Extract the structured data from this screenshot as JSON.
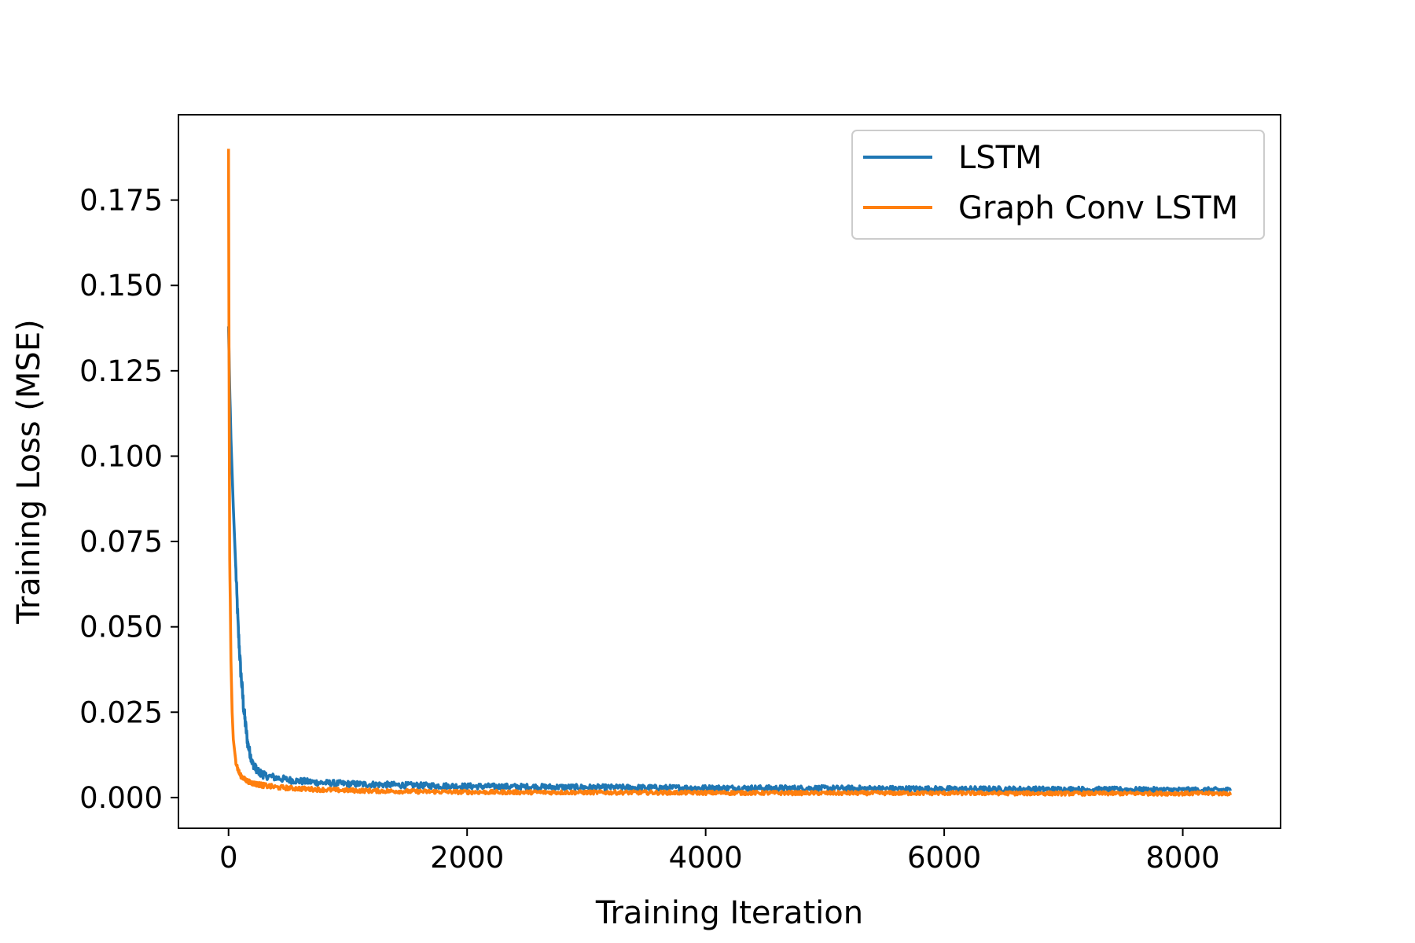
{
  "chart_data": {
    "type": "line",
    "title": "",
    "xlabel": "Training Iteration",
    "ylabel": "Training Loss (MSE)",
    "xlim": [
      -420,
      8820
    ],
    "ylim": [
      -0.009,
      0.2
    ],
    "xticks": [
      0,
      2000,
      4000,
      6000,
      8000
    ],
    "xtick_labels": [
      "0",
      "2000",
      "4000",
      "6000",
      "8000"
    ],
    "yticks": [
      0.0,
      0.025,
      0.05,
      0.075,
      0.1,
      0.125,
      0.15,
      0.175
    ],
    "ytick_labels": [
      "0.000",
      "0.025",
      "0.050",
      "0.075",
      "0.100",
      "0.125",
      "0.150",
      "0.175"
    ],
    "grid": false,
    "legend_position": "top-right",
    "series": [
      {
        "name": "LSTM",
        "color": "#1f77b4",
        "x": [
          0,
          10,
          20,
          40,
          60,
          80,
          100,
          130,
          160,
          200,
          250,
          300,
          400,
          500,
          600,
          800,
          1000,
          1500,
          2000,
          3000,
          4000,
          5000,
          6000,
          7000,
          8000,
          8400
        ],
        "y": [
          0.138,
          0.12,
          0.105,
          0.085,
          0.068,
          0.05,
          0.038,
          0.025,
          0.016,
          0.01,
          0.0075,
          0.0065,
          0.0058,
          0.0052,
          0.0048,
          0.0043,
          0.004,
          0.0036,
          0.0033,
          0.003,
          0.0028,
          0.0027,
          0.0025,
          0.0024,
          0.0022,
          0.0022
        ],
        "noise": 0.0012
      },
      {
        "name": "Graph Conv LSTM",
        "color": "#ff7f0e",
        "x": [
          0,
          5,
          10,
          20,
          30,
          40,
          60,
          80,
          100,
          130,
          160,
          200,
          300,
          400,
          600,
          800,
          1000,
          1500,
          2000,
          3000,
          4000,
          5000,
          6000,
          7000,
          8000,
          8400
        ],
        "y": [
          0.19,
          0.12,
          0.07,
          0.04,
          0.025,
          0.017,
          0.011,
          0.008,
          0.0065,
          0.0055,
          0.0048,
          0.0042,
          0.0035,
          0.003,
          0.0026,
          0.0023,
          0.0021,
          0.0018,
          0.0016,
          0.0015,
          0.0014,
          0.0013,
          0.0013,
          0.0012,
          0.0012,
          0.0012
        ],
        "noise": 0.0009
      }
    ]
  }
}
